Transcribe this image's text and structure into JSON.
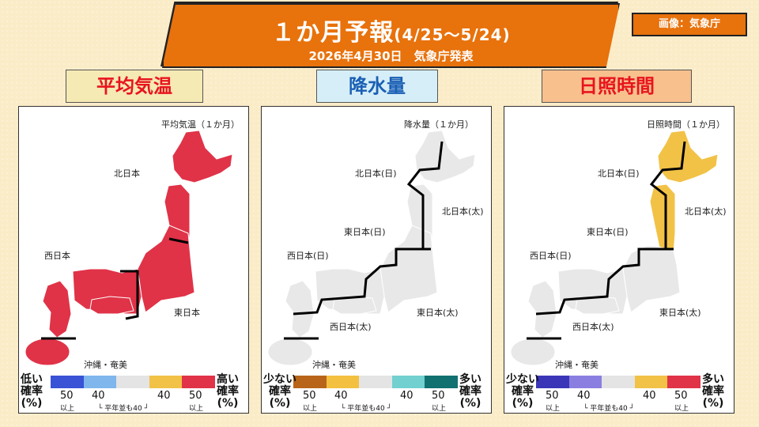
{
  "header": {
    "title_main": "１か月予報",
    "title_range": "(4/25～5/24)",
    "subtitle": "2026年4月30日　気象庁発表",
    "credit": "画像：気象庁"
  },
  "panels": [
    {
      "id": "temperature",
      "tag": "平均気温",
      "tag_bg": "#f5e9b4",
      "tag_color": "#e8141e",
      "map_title": "平均気温（１か月）",
      "fill": "#e03348",
      "regions": [
        "北日本",
        "西日本",
        "東日本",
        "沖縄・奄美"
      ],
      "legend": {
        "left": [
          "低い",
          "確率",
          "(%)"
        ],
        "right": [
          "高い",
          "確率",
          "(%)"
        ],
        "colors": [
          "#3a52d6",
          "#7fb6ec",
          "#e4e4e4",
          "#f2c247",
          "#e03348"
        ],
        "nums": [
          "50",
          "40",
          "40",
          "50"
        ],
        "above": "以上",
        "normal": "平年並も40"
      }
    },
    {
      "id": "precipitation",
      "tag": "降水量",
      "tag_bg": "#d6eef8",
      "tag_color": "#1a5fb4",
      "map_title": "降水量（１か月）",
      "fill": "#e8e8e8",
      "regions": [
        "北日本(日)",
        "北日本(太)",
        "東日本(日)",
        "西日本(日)",
        "東日本(太)",
        "西日本(太)",
        "沖縄・奄美"
      ],
      "legend": {
        "left": [
          "少ない",
          "確率",
          "(%)"
        ],
        "right": [
          "多い",
          "確率",
          "(%)"
        ],
        "colors": [
          "#b8651a",
          "#f4c040",
          "#e4e4e4",
          "#72d0d0",
          "#117070"
        ],
        "nums": [
          "50",
          "40",
          "40",
          "50"
        ],
        "above": "以上",
        "normal": "平年並も40"
      }
    },
    {
      "id": "sunshine",
      "tag": "日照時間",
      "tag_bg": "#f7c08d",
      "tag_color": "#e8141e",
      "map_title": "日照時間（１か月）",
      "fill": "#e8e8e8",
      "north_fill": "#f2c247",
      "regions": [
        "北日本(日)",
        "北日本(太)",
        "東日本(日)",
        "西日本(日)",
        "東日本(太)",
        "西日本(太)",
        "沖縄・奄美"
      ],
      "legend": {
        "left": [
          "少ない",
          "確率",
          "(%)"
        ],
        "right": [
          "多い",
          "確率",
          "(%)"
        ],
        "colors": [
          "#3b36b8",
          "#8a7fe0",
          "#e4e4e4",
          "#f2c247",
          "#e03348"
        ],
        "nums": [
          "50",
          "40",
          "40",
          "50"
        ],
        "above": "以上",
        "normal": "平年並も40"
      }
    }
  ]
}
